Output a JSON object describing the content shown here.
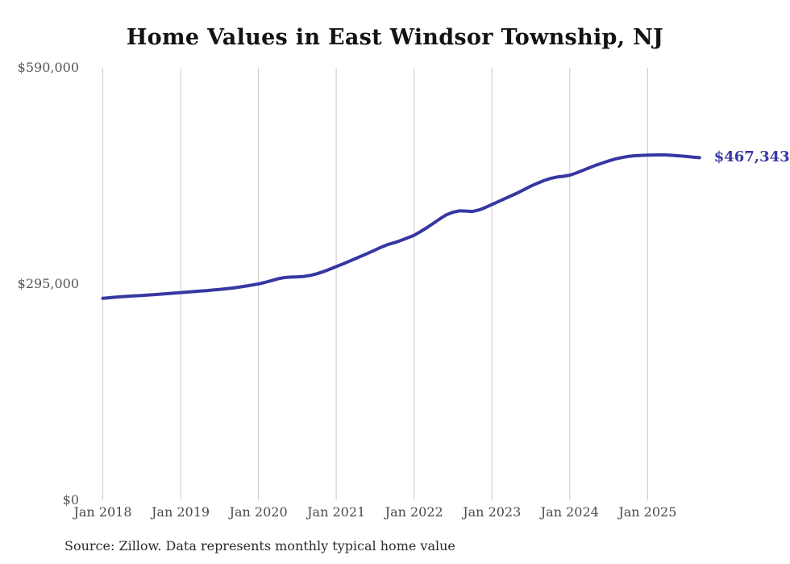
{
  "title": "Home Values in East Windsor Township, NJ",
  "source_note": "Source: Zillow. Data represents monthly typical home value",
  "latest_value_label": "$467,343",
  "colors": {
    "line": "#3737a3",
    "latest_label": "#3737a3",
    "grid": "#cbcbcb",
    "title_text": "#131313",
    "axis_text": "#4a4a4a"
  },
  "chart_data": {
    "type": "line",
    "title": "Home Values in East Windsor Township, NJ",
    "xlabel": "",
    "ylabel": "",
    "ylim": [
      0,
      590000
    ],
    "y_ticks": [
      0,
      295000,
      590000
    ],
    "y_tick_labels": [
      "$0",
      "$295,000",
      "$590,000"
    ],
    "x_tick_labels": [
      "Jan 2018",
      "Jan 2019",
      "Jan 2020",
      "Jan 2021",
      "Jan 2022",
      "Jan 2023",
      "Jan 2024",
      "Jan 2025"
    ],
    "grid": "vertical-only",
    "legend": false,
    "annotation_last_value": "$467,343",
    "series": [
      {
        "name": "Monthly typical home value",
        "x_interval": "monthly",
        "x_start": "2018-01",
        "x_end": "2025-09",
        "months": [
          "2018-01",
          "2018-02",
          "2018-03",
          "2018-04",
          "2018-05",
          "2018-06",
          "2018-07",
          "2018-08",
          "2018-09",
          "2018-10",
          "2018-11",
          "2018-12",
          "2019-01",
          "2019-02",
          "2019-03",
          "2019-04",
          "2019-05",
          "2019-06",
          "2019-07",
          "2019-08",
          "2019-09",
          "2019-10",
          "2019-11",
          "2019-12",
          "2020-01",
          "2020-02",
          "2020-03",
          "2020-04",
          "2020-05",
          "2020-06",
          "2020-07",
          "2020-08",
          "2020-09",
          "2020-10",
          "2020-11",
          "2020-12",
          "2021-01",
          "2021-02",
          "2021-03",
          "2021-04",
          "2021-05",
          "2021-06",
          "2021-07",
          "2021-08",
          "2021-09",
          "2021-10",
          "2021-11",
          "2021-12",
          "2022-01",
          "2022-02",
          "2022-03",
          "2022-04",
          "2022-05",
          "2022-06",
          "2022-07",
          "2022-08",
          "2022-09",
          "2022-10",
          "2022-11",
          "2022-12",
          "2023-01",
          "2023-02",
          "2023-03",
          "2023-04",
          "2023-05",
          "2023-06",
          "2023-07",
          "2023-08",
          "2023-09",
          "2023-10",
          "2023-11",
          "2023-12",
          "2024-01",
          "2024-02",
          "2024-03",
          "2024-04",
          "2024-05",
          "2024-06",
          "2024-07",
          "2024-08",
          "2024-09",
          "2024-10",
          "2024-11",
          "2024-12",
          "2025-01",
          "2025-02",
          "2025-03",
          "2025-04",
          "2025-05",
          "2025-06",
          "2025-07",
          "2025-08",
          "2025-09"
        ],
        "values": [
          275500,
          276300,
          277100,
          277800,
          278400,
          278900,
          279400,
          280000,
          280600,
          281200,
          281900,
          282600,
          283300,
          284000,
          284600,
          285300,
          286000,
          286800,
          287600,
          288500,
          289500,
          290700,
          292100,
          293600,
          295100,
          297200,
          299600,
          302000,
          303800,
          304500,
          304800,
          305400,
          306800,
          309000,
          311800,
          315200,
          318800,
          322300,
          326000,
          329800,
          333600,
          337500,
          341500,
          345500,
          349000,
          351500,
          354500,
          358000,
          361500,
          366500,
          372000,
          378000,
          384000,
          389500,
          393000,
          394800,
          394500,
          394000,
          396000,
          399500,
          403500,
          407500,
          411500,
          415500,
          419500,
          424000,
          428500,
          432500,
          436000,
          439000,
          441000,
          442000,
          443500,
          446500,
          450000,
          453500,
          457000,
          460000,
          463000,
          465500,
          467500,
          469000,
          470000,
          470500,
          470800,
          471000,
          471200,
          471000,
          470500,
          469800,
          469000,
          468200,
          467343
        ]
      }
    ]
  }
}
